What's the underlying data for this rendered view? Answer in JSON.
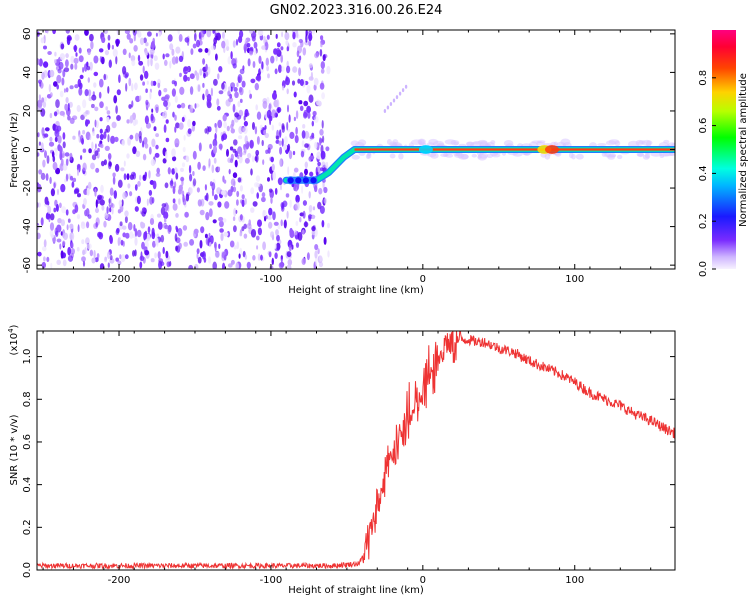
{
  "title": "GN02.2023.316.00.26.E24",
  "chart_data": [
    {
      "type": "heatmap",
      "name": "spectrogram",
      "xlabel": "Height of straight line (km)",
      "ylabel": "Frequency (Hz)",
      "xlim": [
        -254,
        166
      ],
      "ylim": [
        -62,
        62
      ],
      "xticks": [
        -200,
        -100,
        0,
        100
      ],
      "yticks": [
        -60,
        -40,
        -20,
        0,
        20,
        40,
        60
      ],
      "colorbar": {
        "label": "Normalized spectral amplitude",
        "range": [
          0,
          1
        ],
        "ticks": [
          "0.0",
          "0.2",
          "0.4",
          "0.6",
          "0.8"
        ],
        "colormap": "rainbow (purple-blue-cyan-green-yellow-red-magenta)"
      },
      "features": {
        "noise_region_x": [
          -254,
          -62
        ],
        "dominant_line_frequency": [
          {
            "x": -90,
            "y": -16
          },
          {
            "x": -70,
            "y": -16
          },
          {
            "x": -62,
            "y": -12
          },
          {
            "x": -52,
            "y": -4
          },
          {
            "x": -45,
            "y": 0
          },
          {
            "x": 166,
            "y": 0
          }
        ]
      },
      "grid": false
    },
    {
      "type": "line",
      "name": "snr",
      "xlabel": "Height of straight line (km)",
      "ylabel": "SNR (10 * v/v)",
      "yunit_exponent": "(x10",
      "yunit_power": "4",
      "yunit_close": ")",
      "xlim": [
        -254,
        166
      ],
      "ylim": [
        0,
        1.12
      ],
      "xticks": [
        -200,
        -100,
        0,
        100
      ],
      "yticks": [
        "0.0",
        "0.2",
        "0.4",
        "0.6",
        "0.8",
        "1.0"
      ],
      "color": "#ee3333",
      "series": [
        {
          "x": [
            -254,
            -220,
            -180,
            -140,
            -100,
            -60,
            -42,
            -38,
            -35,
            -32,
            -28,
            -24,
            -20,
            -15,
            -10,
            -5,
            0,
            5,
            10,
            15,
            20,
            25,
            30,
            35,
            40,
            50,
            60,
            70,
            80,
            90,
            100,
            110,
            120,
            130,
            140,
            150,
            160,
            166
          ],
          "y": [
            0.02,
            0.02,
            0.02,
            0.02,
            0.02,
            0.02,
            0.03,
            0.08,
            0.15,
            0.25,
            0.35,
            0.45,
            0.55,
            0.62,
            0.68,
            0.75,
            0.82,
            0.9,
            0.98,
            1.04,
            1.07,
            1.08,
            1.08,
            1.07,
            1.07,
            1.04,
            1.02,
            0.98,
            0.95,
            0.92,
            0.88,
            0.83,
            0.8,
            0.77,
            0.73,
            0.7,
            0.66,
            0.64
          ]
        }
      ],
      "grid": false
    }
  ]
}
